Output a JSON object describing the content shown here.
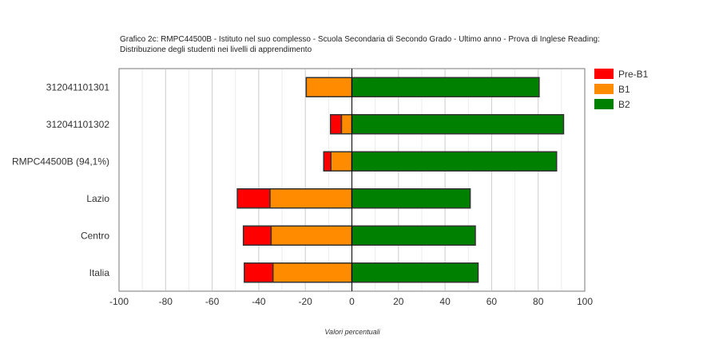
{
  "chart_data": {
    "type": "bar",
    "orientation": "horizontal",
    "stacked": "diverging",
    "title_lines": [
      "Grafico 2c: RMPC44500B - Istituto nel suo complesso - Scuola Secondaria di Secondo Grado - Ultimo anno - Prova di Inglese Reading:",
      "Distribuzione degli studenti nei livelli di apprendimento"
    ],
    "xlabel": "Valori percentuali",
    "ylabel": "",
    "xlim": [
      -100,
      100
    ],
    "xticks": [
      -100,
      -80,
      -60,
      -40,
      -20,
      0,
      20,
      40,
      60,
      80,
      100
    ],
    "grid": true,
    "legend_position": "right-top",
    "categories": [
      "312041101301",
      "312041101302",
      "RMPC44500B (94,1%)",
      "Lazio",
      "Centro",
      "Italia"
    ],
    "series": [
      {
        "name": "Pre-B1",
        "color": "#ff0000",
        "values": [
          0,
          4.7,
          3.1,
          14.0,
          11.9,
          12.3
        ],
        "side": "negative"
      },
      {
        "name": "B1",
        "color": "#ff8c00",
        "values": [
          19.6,
          4.5,
          9.0,
          35.2,
          34.7,
          33.9
        ],
        "side": "negative"
      },
      {
        "name": "B2",
        "color": "#008000",
        "values": [
          80.4,
          90.9,
          87.9,
          50.8,
          53.0,
          54.2
        ],
        "side": "positive"
      }
    ]
  }
}
